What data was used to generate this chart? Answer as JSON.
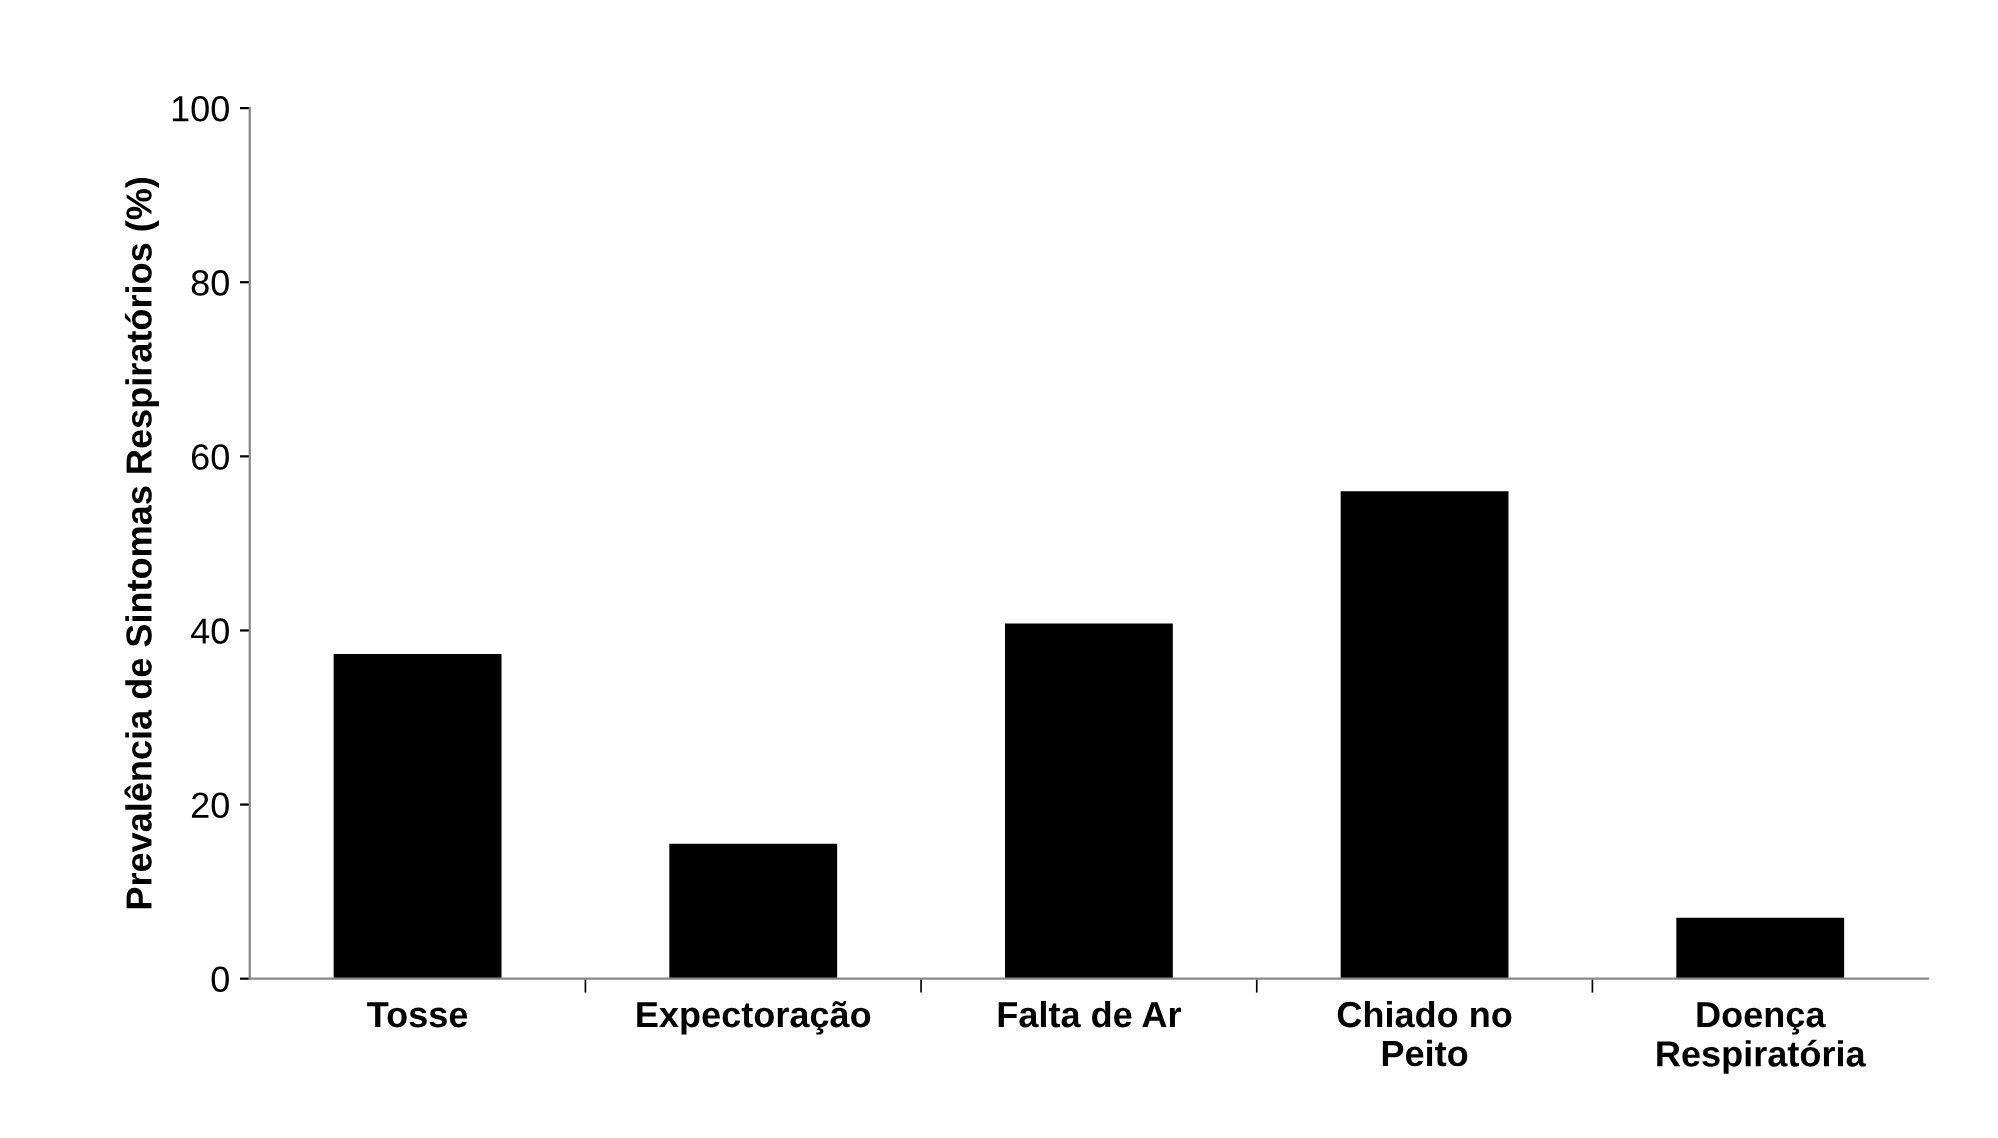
{
  "chart_data": {
    "type": "bar",
    "ylabel": "Prevalência de Sintomas Respiratórios (%)",
    "categories": [
      "Tosse",
      "Expectoração",
      "Falta de Ar",
      "Chiado no\nPeito",
      "Doença\nRespiratória"
    ],
    "values": [
      37.3,
      15.5,
      40.8,
      56.0,
      7.0
    ],
    "color": "#000000",
    "ylim": [
      0,
      100
    ],
    "yticks": [
      0,
      20,
      40,
      60,
      80,
      100
    ],
    "grid": false,
    "legend": false
  }
}
